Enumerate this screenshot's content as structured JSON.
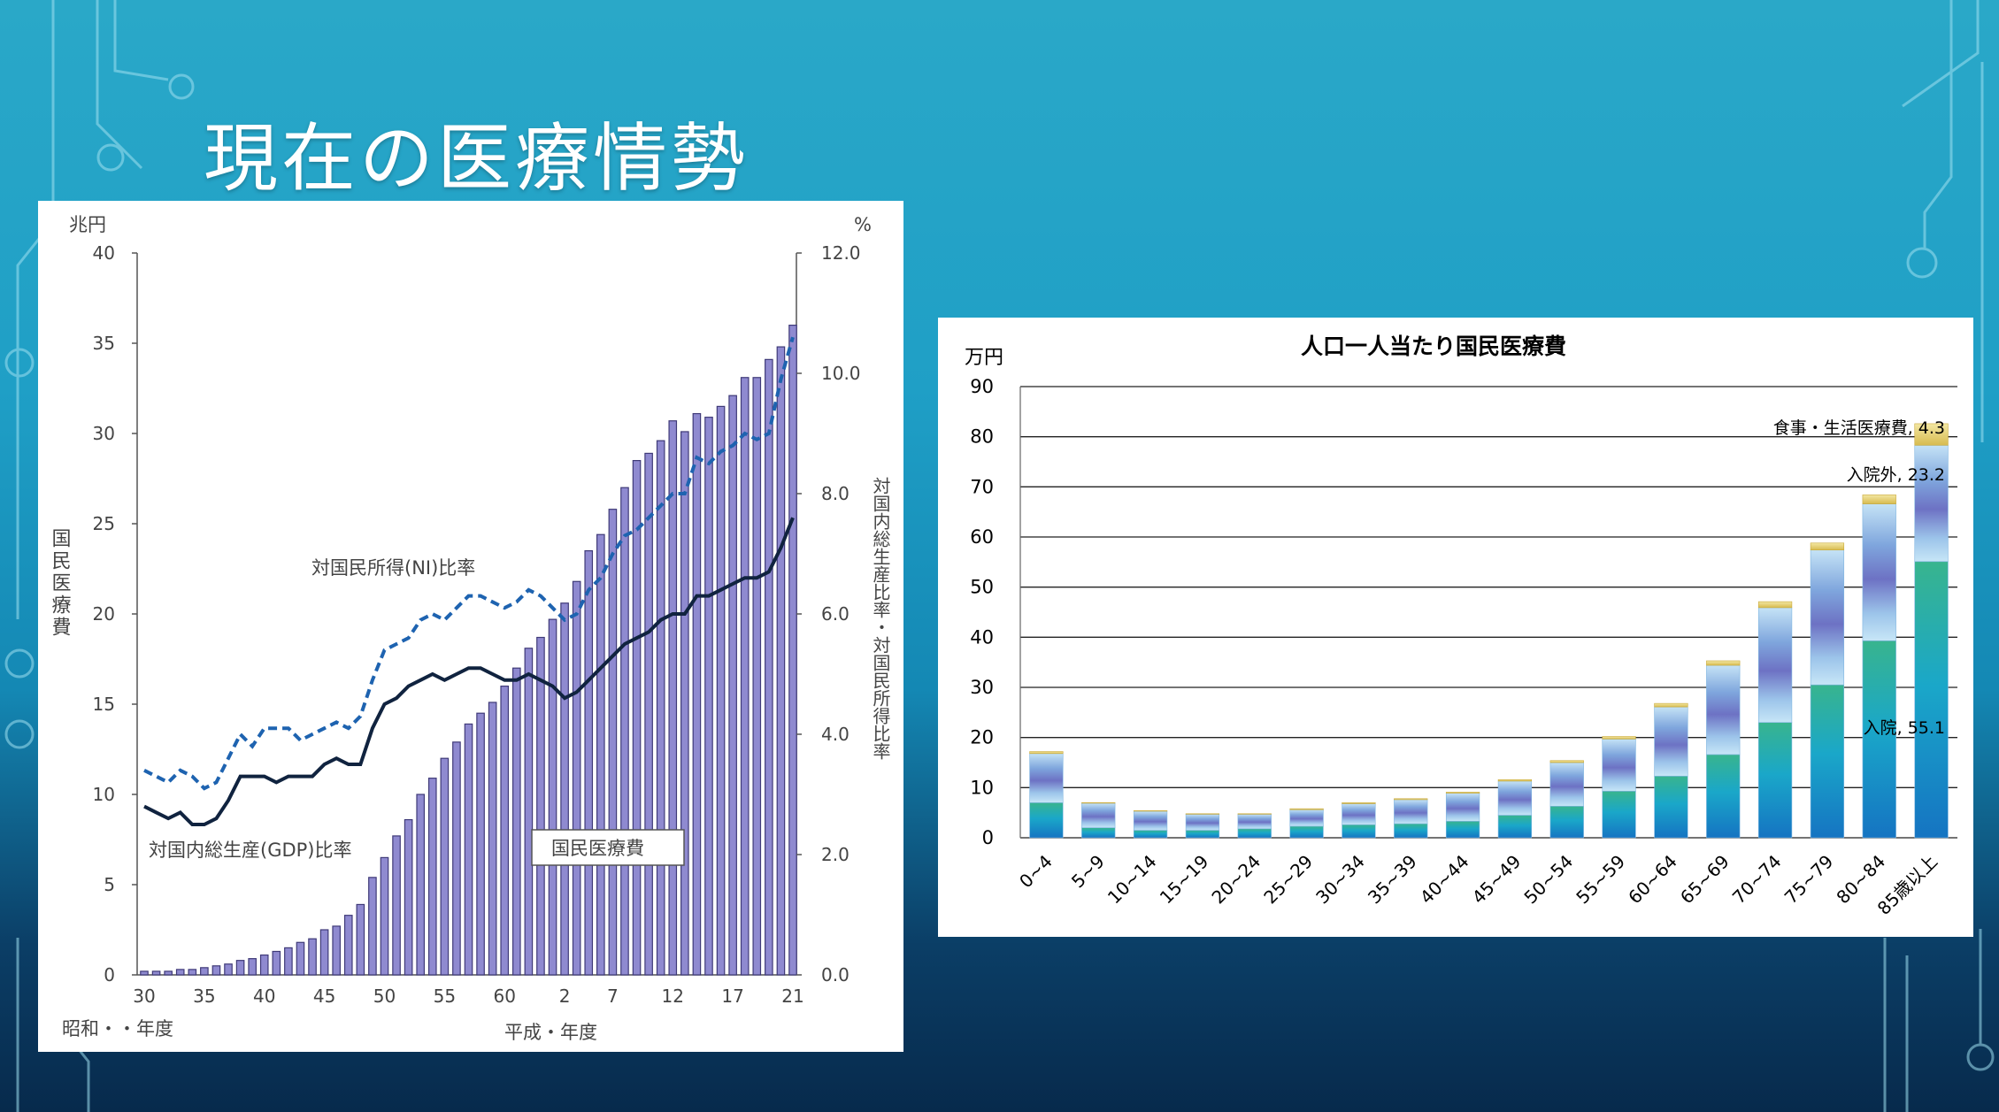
{
  "slide": {
    "title": "現在の医療情勢"
  },
  "colors": {
    "bar_fill": "#8f8ad0",
    "bar_edge": "#3f3a78",
    "gdp_line": "#10233f",
    "ni_line": "#1e63b0"
  },
  "left_chart": {
    "left_unit": "兆円",
    "right_unit": "%",
    "y_left_label": "国民医療費",
    "y_right_label": "対国内総生産比率・対国民所得比率",
    "x_era1_label": "昭和・・年度",
    "x_era2_label": "平成・年度",
    "label_ni": "対国民所得(NI)比率",
    "label_gdp": "対国内総生産(GDP)比率",
    "label_bars": "国民医療費",
    "left_ticks": [
      "0",
      "5",
      "10",
      "15",
      "20",
      "25",
      "30",
      "35",
      "40"
    ],
    "right_ticks": [
      "0.0",
      "2.0",
      "4.0",
      "6.0",
      "8.0",
      "10.0",
      "12.0"
    ],
    "x_ticks": [
      "30",
      "35",
      "40",
      "45",
      "50",
      "55",
      "60",
      "2",
      "7",
      "12",
      "17",
      "21"
    ]
  },
  "right_chart": {
    "title": "人口一人当たり国民医療費",
    "unit": "万円",
    "y_ticks": [
      "0",
      "10",
      "20",
      "30",
      "40",
      "50",
      "60",
      "70",
      "80",
      "90"
    ],
    "annotations": {
      "food": "食事・生活医療費, 4.3",
      "outpatient": "入院外, 23.2",
      "inpatient": "入院, 55.1"
    }
  },
  "chart_data": [
    {
      "type": "bar",
      "title": "",
      "xlabel": "昭和・・年度 / 平成・年度",
      "ylabel": "国民医療費",
      "ylim": [
        0,
        40
      ],
      "y2lim": [
        0,
        12
      ],
      "grid": false,
      "x": [
        "S30",
        "S31",
        "S32",
        "S33",
        "S34",
        "S35",
        "S36",
        "S37",
        "S38",
        "S39",
        "S40",
        "S41",
        "S42",
        "S43",
        "S44",
        "S45",
        "S46",
        "S47",
        "S48",
        "S49",
        "S50",
        "S51",
        "S52",
        "S53",
        "S54",
        "S55",
        "S56",
        "S57",
        "S58",
        "S59",
        "S60",
        "S61",
        "S62",
        "S63",
        "H1",
        "H2",
        "H3",
        "H4",
        "H5",
        "H6",
        "H7",
        "H8",
        "H9",
        "H10",
        "H11",
        "H12",
        "H13",
        "H14",
        "H15",
        "H16",
        "H17",
        "H18",
        "H19",
        "H20",
        "H21"
      ],
      "series": [
        {
          "name": "国民医療費",
          "type": "bar",
          "axis": "left",
          "values": [
            0.2,
            0.2,
            0.2,
            0.3,
            0.3,
            0.4,
            0.5,
            0.6,
            0.8,
            0.9,
            1.1,
            1.3,
            1.5,
            1.8,
            2.0,
            2.5,
            2.7,
            3.3,
            3.9,
            5.4,
            6.5,
            7.7,
            8.6,
            10.0,
            10.9,
            12.0,
            12.9,
            13.9,
            14.5,
            15.1,
            16.0,
            17.0,
            18.1,
            18.7,
            19.7,
            20.6,
            21.8,
            23.5,
            24.4,
            25.8,
            27.0,
            28.5,
            28.9,
            29.6,
            30.7,
            30.1,
            31.1,
            30.9,
            31.5,
            32.1,
            33.1,
            33.1,
            34.1,
            34.8,
            36.0
          ]
        },
        {
          "name": "対国民所得(NI)比率",
          "type": "line",
          "axis": "right",
          "values": [
            3.4,
            3.3,
            3.2,
            3.4,
            3.3,
            3.1,
            3.2,
            3.6,
            4.0,
            3.8,
            4.1,
            4.1,
            4.1,
            3.9,
            4.0,
            4.1,
            4.2,
            4.1,
            4.3,
            4.9,
            5.4,
            5.5,
            5.6,
            5.9,
            6.0,
            5.9,
            6.1,
            6.3,
            6.3,
            6.2,
            6.1,
            6.2,
            6.4,
            6.3,
            6.1,
            5.9,
            6.0,
            6.4,
            6.6,
            7.0,
            7.3,
            7.4,
            7.6,
            7.8,
            8.0,
            8.0,
            8.6,
            8.5,
            8.7,
            8.8,
            9.0,
            8.9,
            9.0,
            9.9,
            10.6
          ]
        },
        {
          "name": "対国内総生産(GDP)比率",
          "type": "line",
          "axis": "right",
          "values": [
            2.8,
            2.7,
            2.6,
            2.7,
            2.5,
            2.5,
            2.6,
            2.9,
            3.3,
            3.3,
            3.3,
            3.2,
            3.3,
            3.3,
            3.3,
            3.5,
            3.6,
            3.5,
            3.5,
            4.1,
            4.5,
            4.6,
            4.8,
            4.9,
            5.0,
            4.9,
            5.0,
            5.1,
            5.1,
            5.0,
            4.9,
            4.9,
            5.0,
            4.9,
            4.8,
            4.6,
            4.7,
            4.9,
            5.1,
            5.3,
            5.5,
            5.6,
            5.7,
            5.9,
            6.0,
            6.0,
            6.3,
            6.3,
            6.4,
            6.5,
            6.6,
            6.6,
            6.7,
            7.1,
            7.6
          ]
        }
      ]
    },
    {
      "type": "bar",
      "stacked": true,
      "title": "人口一人当たり国民医療費",
      "ylabel": "万円",
      "ylim": [
        0,
        90
      ],
      "grid": true,
      "categories": [
        "0~4",
        "5~9",
        "10~14",
        "15~19",
        "20~24",
        "25~29",
        "30~34",
        "35~39",
        "40~44",
        "45~49",
        "50~54",
        "55~59",
        "60~64",
        "65~69",
        "70~74",
        "75~79",
        "80~84",
        "85歳以上"
      ],
      "series": [
        {
          "name": "入院",
          "values": [
            7.0,
            2.0,
            1.5,
            1.5,
            1.8,
            2.3,
            2.6,
            2.8,
            3.3,
            4.5,
            6.3,
            9.3,
            12.3,
            16.6,
            23.0,
            30.5,
            39.3,
            55.1
          ]
        },
        {
          "name": "入院外",
          "values": [
            9.8,
            4.9,
            3.8,
            3.2,
            2.9,
            3.3,
            4.2,
            4.8,
            5.6,
            6.8,
            8.7,
            10.4,
            13.8,
            17.8,
            22.9,
            26.9,
            27.3,
            23.2
          ]
        },
        {
          "name": "食事・生活医療費",
          "values": [
            0.4,
            0.1,
            0.1,
            0.1,
            0.1,
            0.2,
            0.2,
            0.2,
            0.2,
            0.3,
            0.4,
            0.5,
            0.7,
            0.9,
            1.2,
            1.4,
            1.8,
            4.3
          ]
        }
      ]
    }
  ]
}
